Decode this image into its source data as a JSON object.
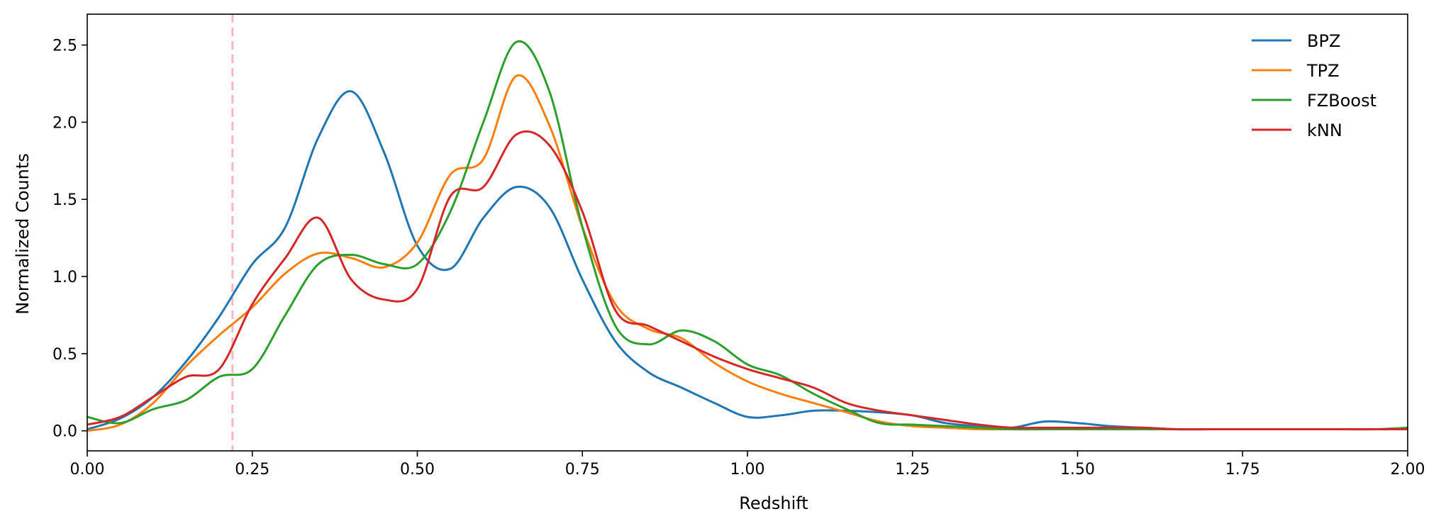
{
  "chart_data": {
    "type": "line",
    "title": "",
    "xlabel": "Redshift",
    "ylabel": "Normalized Counts",
    "xlim": [
      0,
      2
    ],
    "ylim": [
      -0.13,
      2.7
    ],
    "xticks": [
      0,
      0.25,
      0.5,
      0.75,
      1.0,
      1.25,
      1.5,
      1.75,
      2.0
    ],
    "xtick_labels": [
      "0.00",
      "0.25",
      "0.50",
      "0.75",
      "1.00",
      "1.25",
      "1.50",
      "1.75",
      "2.00"
    ],
    "yticks": [
      0,
      0.5,
      1.0,
      1.5,
      2.0,
      2.5
    ],
    "ytick_labels": [
      "0.0",
      "0.5",
      "1.0",
      "1.5",
      "2.0",
      "2.5"
    ],
    "grid": false,
    "legend_position": "top-right",
    "vline": {
      "x": 0.22,
      "color": "#ffb6c1",
      "style": "dashed"
    },
    "x": [
      0.0,
      0.05,
      0.1,
      0.15,
      0.2,
      0.25,
      0.3,
      0.35,
      0.4,
      0.45,
      0.5,
      0.55,
      0.6,
      0.65,
      0.7,
      0.75,
      0.8,
      0.85,
      0.9,
      0.95,
      1.0,
      1.05,
      1.1,
      1.15,
      1.2,
      1.25,
      1.3,
      1.35,
      1.4,
      1.45,
      1.5,
      1.55,
      1.6,
      1.65,
      1.7,
      1.75,
      1.8,
      1.85,
      1.9,
      1.95,
      2.0
    ],
    "series": [
      {
        "name": "BPZ",
        "color": "#1f77b4",
        "values": [
          0.01,
          0.08,
          0.22,
          0.45,
          0.74,
          1.08,
          1.32,
          1.9,
          2.2,
          1.8,
          1.2,
          1.05,
          1.38,
          1.58,
          1.45,
          0.98,
          0.58,
          0.38,
          0.28,
          0.18,
          0.09,
          0.1,
          0.13,
          0.13,
          0.12,
          0.1,
          0.05,
          0.03,
          0.02,
          0.06,
          0.05,
          0.03,
          0.02,
          0.01,
          0.01,
          0.01,
          0.01,
          0.01,
          0.01,
          0.01,
          0.01
        ]
      },
      {
        "name": "TPZ",
        "color": "#ff7f0e",
        "values": [
          0.0,
          0.04,
          0.18,
          0.42,
          0.62,
          0.8,
          1.02,
          1.15,
          1.12,
          1.06,
          1.22,
          1.66,
          1.76,
          2.3,
          1.98,
          1.32,
          0.82,
          0.66,
          0.6,
          0.44,
          0.32,
          0.24,
          0.18,
          0.12,
          0.06,
          0.03,
          0.02,
          0.01,
          0.01,
          0.01,
          0.01,
          0.01,
          0.01,
          0.01,
          0.01,
          0.01,
          0.01,
          0.01,
          0.01,
          0.01,
          0.01
        ]
      },
      {
        "name": "FZBoost",
        "color": "#2ca02c",
        "values": [
          0.09,
          0.05,
          0.14,
          0.2,
          0.35,
          0.4,
          0.75,
          1.08,
          1.14,
          1.08,
          1.08,
          1.42,
          2.0,
          2.52,
          2.2,
          1.32,
          0.68,
          0.56,
          0.65,
          0.58,
          0.43,
          0.36,
          0.24,
          0.14,
          0.05,
          0.04,
          0.03,
          0.02,
          0.01,
          0.01,
          0.01,
          0.01,
          0.01,
          0.01,
          0.01,
          0.01,
          0.01,
          0.01,
          0.01,
          0.01,
          0.02
        ]
      },
      {
        "name": "kNN",
        "color": "#d62728",
        "values": [
          0.04,
          0.09,
          0.22,
          0.35,
          0.4,
          0.82,
          1.12,
          1.38,
          0.98,
          0.85,
          0.92,
          1.52,
          1.58,
          1.92,
          1.85,
          1.42,
          0.78,
          0.68,
          0.58,
          0.48,
          0.4,
          0.34,
          0.28,
          0.18,
          0.13,
          0.1,
          0.07,
          0.04,
          0.02,
          0.02,
          0.02,
          0.02,
          0.02,
          0.01,
          0.01,
          0.01,
          0.01,
          0.01,
          0.01,
          0.01,
          0.01
        ]
      }
    ]
  }
}
